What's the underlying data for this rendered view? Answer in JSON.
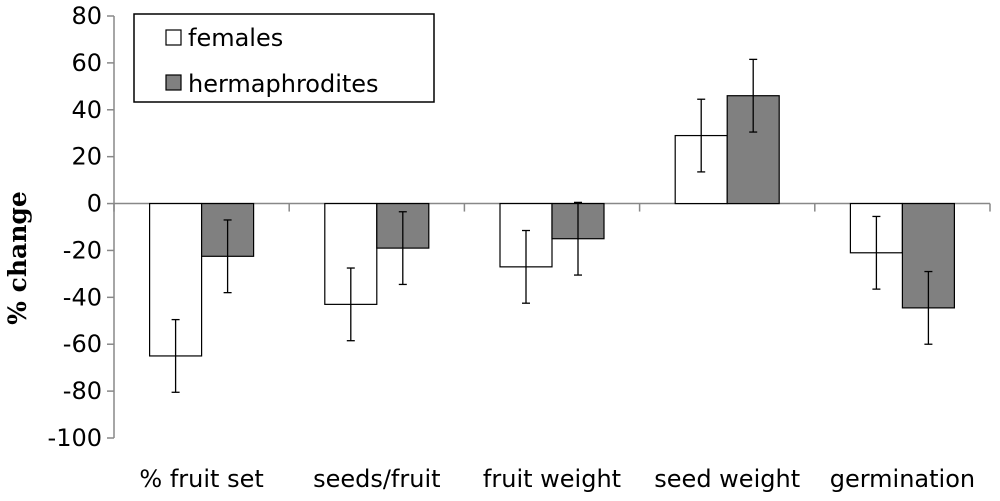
{
  "chart_data": {
    "type": "bar",
    "categories": [
      "% fruit set",
      "seeds/fruit",
      "fruit weight",
      "seed weight",
      "germination"
    ],
    "series": [
      {
        "name": "females",
        "values": [
          -65,
          -43,
          -27,
          29,
          -21
        ],
        "errors": [
          15.5,
          15.5,
          15.5,
          15.5,
          15.5
        ],
        "color": "#ffffff"
      },
      {
        "name": "hermaphrodites",
        "values": [
          -22.5,
          -19,
          -15,
          46,
          -44.5
        ],
        "errors": [
          15.5,
          15.5,
          15.5,
          15.5,
          15.5
        ],
        "color": "#808080"
      }
    ],
    "title": "",
    "xlabel": "",
    "ylabel": "% change",
    "ylim": [
      -100,
      80
    ],
    "yticks": [
      80,
      60,
      40,
      20,
      0,
      -20,
      -40,
      -60,
      -80,
      -100
    ],
    "ytick_labels": [
      "80",
      "60",
      "40",
      "20",
      "0",
      "-20",
      "-40",
      "-60",
      "-80",
      "-100"
    ],
    "grid": false,
    "legend_position": "top-left"
  }
}
